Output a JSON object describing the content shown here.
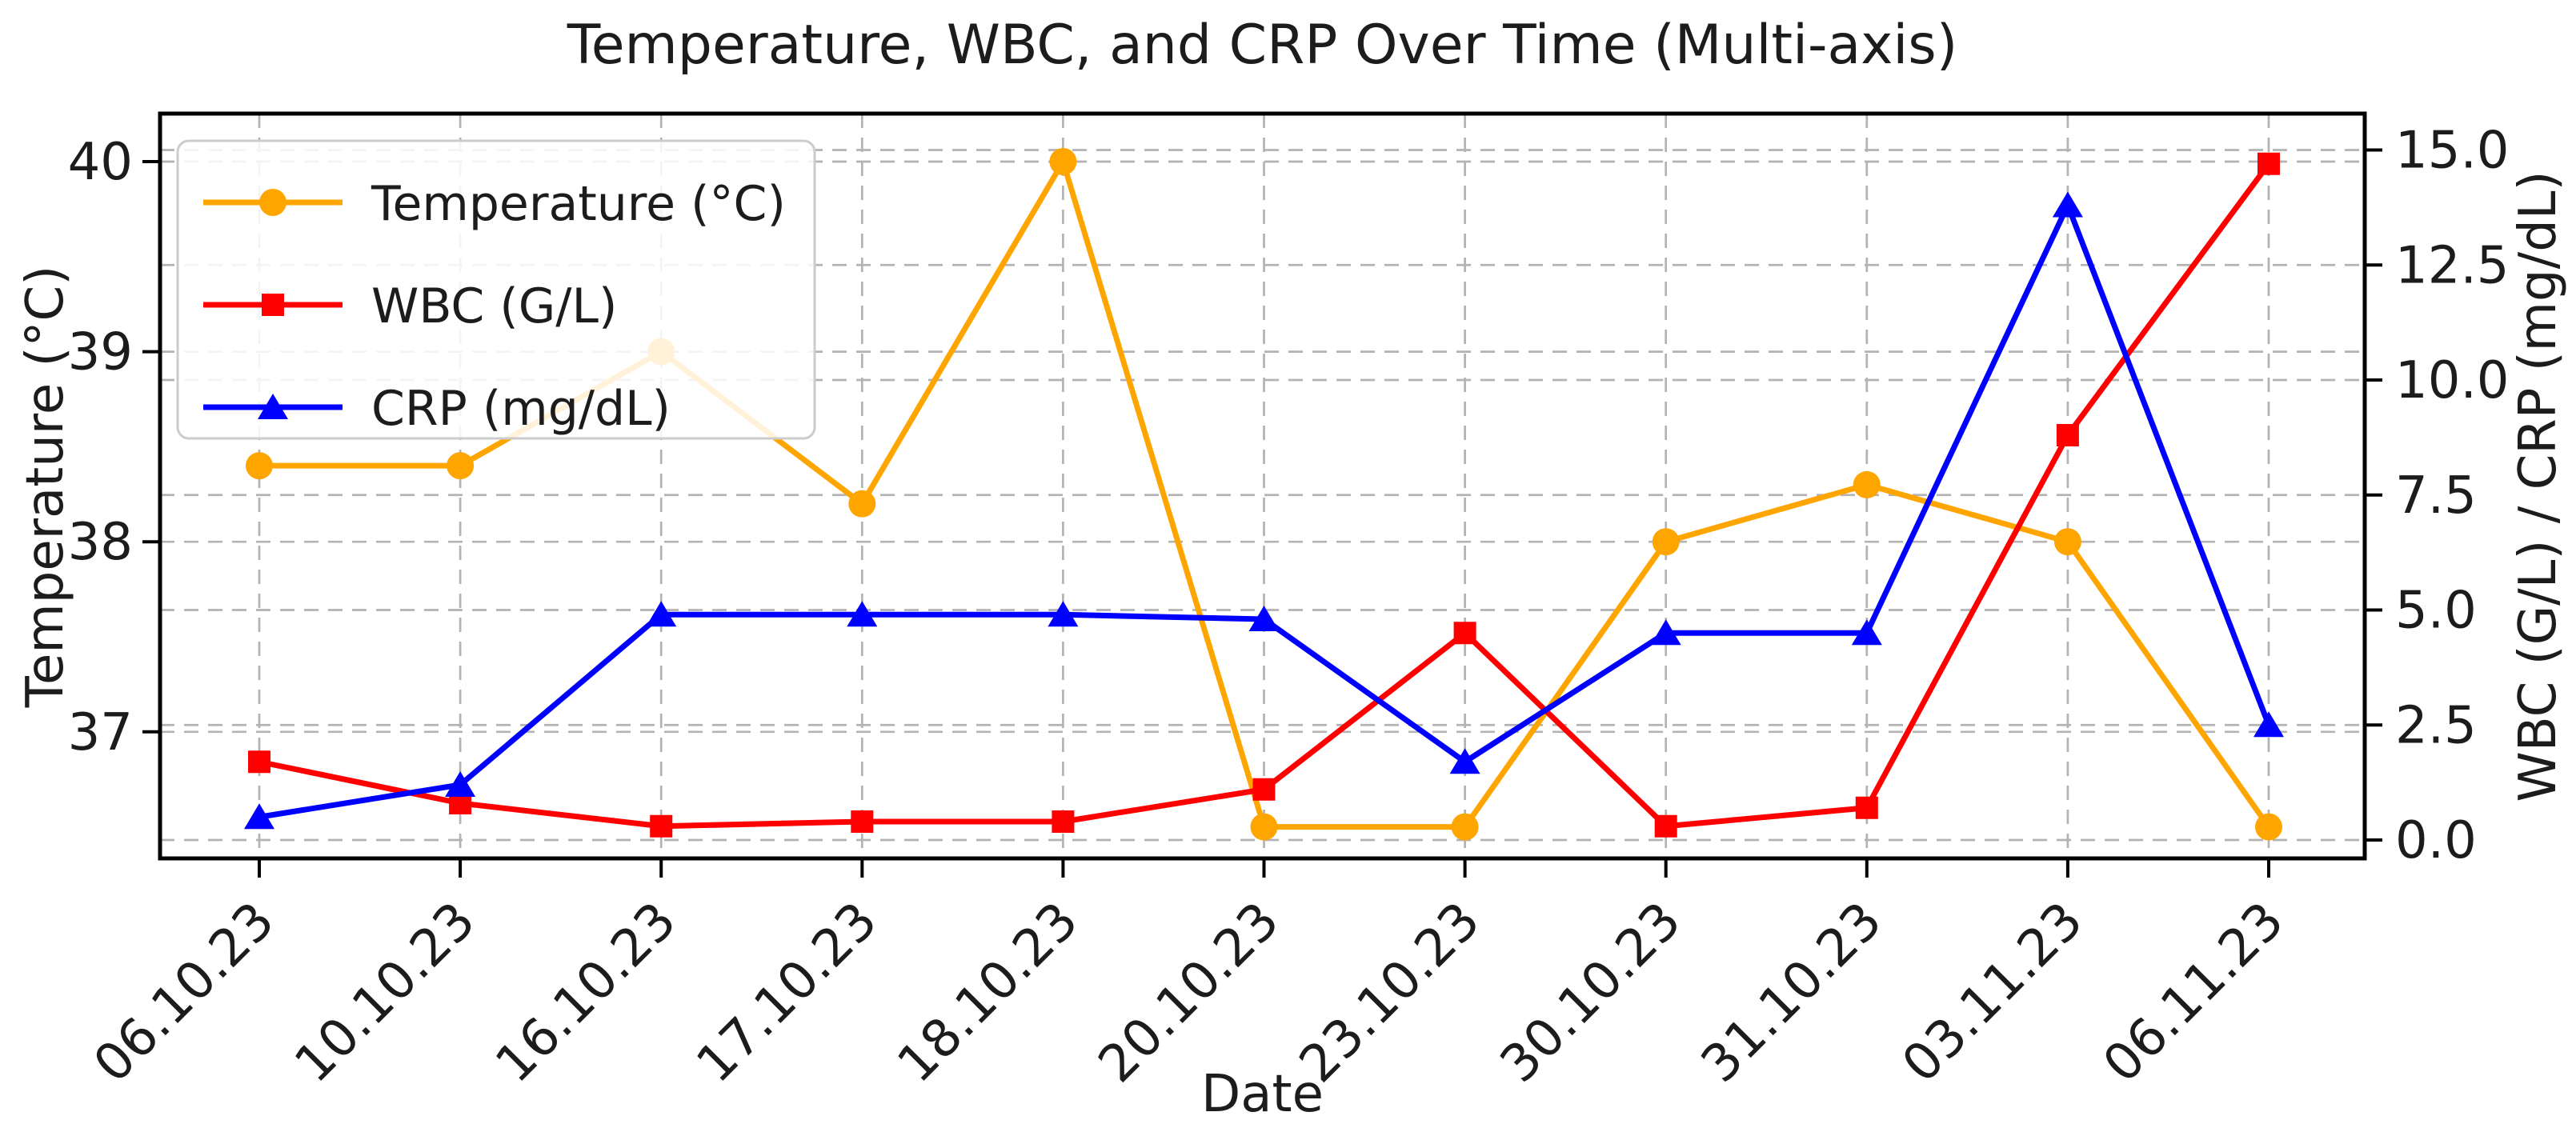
{
  "title": "Temperature, WBC, and CRP Over Time (Multi-axis)",
  "xlabel": "Date",
  "ylabel_left": "Temperature (°C)",
  "ylabel_right": "WBC (G/L) / CRP (mg/dL)",
  "colors": {
    "temperature": "#FFA500",
    "wbc": "#FF0000",
    "crp": "#0000FF",
    "grid": "#b3b3b3",
    "spine": "#000000",
    "text": "#1c1c1c",
    "legend_border": "#cccccc",
    "legend_bg": "#ffffff"
  },
  "chart_data": {
    "type": "line",
    "title": "Temperature, WBC, and CRP Over Time (Multi-axis)",
    "xlabel": "Date",
    "categories": [
      "06.10.23",
      "10.10.23",
      "16.10.23",
      "17.10.23",
      "18.10.23",
      "20.10.23",
      "23.10.23",
      "30.10.23",
      "31.10.23",
      "03.11.23",
      "06.11.23"
    ],
    "series": [
      {
        "name": "Temperature (°C)",
        "axis": "left",
        "color": "#FFA500",
        "marker": "circle",
        "values": [
          38.4,
          38.4,
          39.0,
          38.2,
          40.0,
          36.5,
          36.5,
          38.0,
          38.3,
          38.0,
          36.5
        ]
      },
      {
        "name": "WBC (G/L)",
        "axis": "right",
        "color": "#FF0000",
        "marker": "square",
        "values": [
          1.7,
          0.8,
          0.3,
          0.4,
          0.4,
          1.1,
          4.5,
          0.3,
          0.7,
          8.8,
          14.7
        ]
      },
      {
        "name": "CRP (mg/dL)",
        "axis": "right",
        "color": "#0000FF",
        "marker": "triangle",
        "values": [
          0.5,
          1.2,
          4.9,
          4.9,
          4.9,
          4.8,
          1.7,
          4.5,
          4.5,
          13.8,
          2.5
        ]
      }
    ],
    "left_axis": {
      "label": "Temperature (°C)",
      "ticks": [
        37,
        38,
        39,
        40
      ],
      "ylim": [
        36.33,
        40.25
      ]
    },
    "right_axis": {
      "label": "WBC (G/L) / CRP (mg/dL)",
      "ticks": [
        0.0,
        2.5,
        5.0,
        7.5,
        10.0,
        12.5,
        15.0
      ],
      "ylim": [
        -0.4,
        15.5
      ]
    },
    "grid": true,
    "grid_style": "dashed",
    "legend_position": "upper left",
    "x_tick_rotation": 45
  }
}
